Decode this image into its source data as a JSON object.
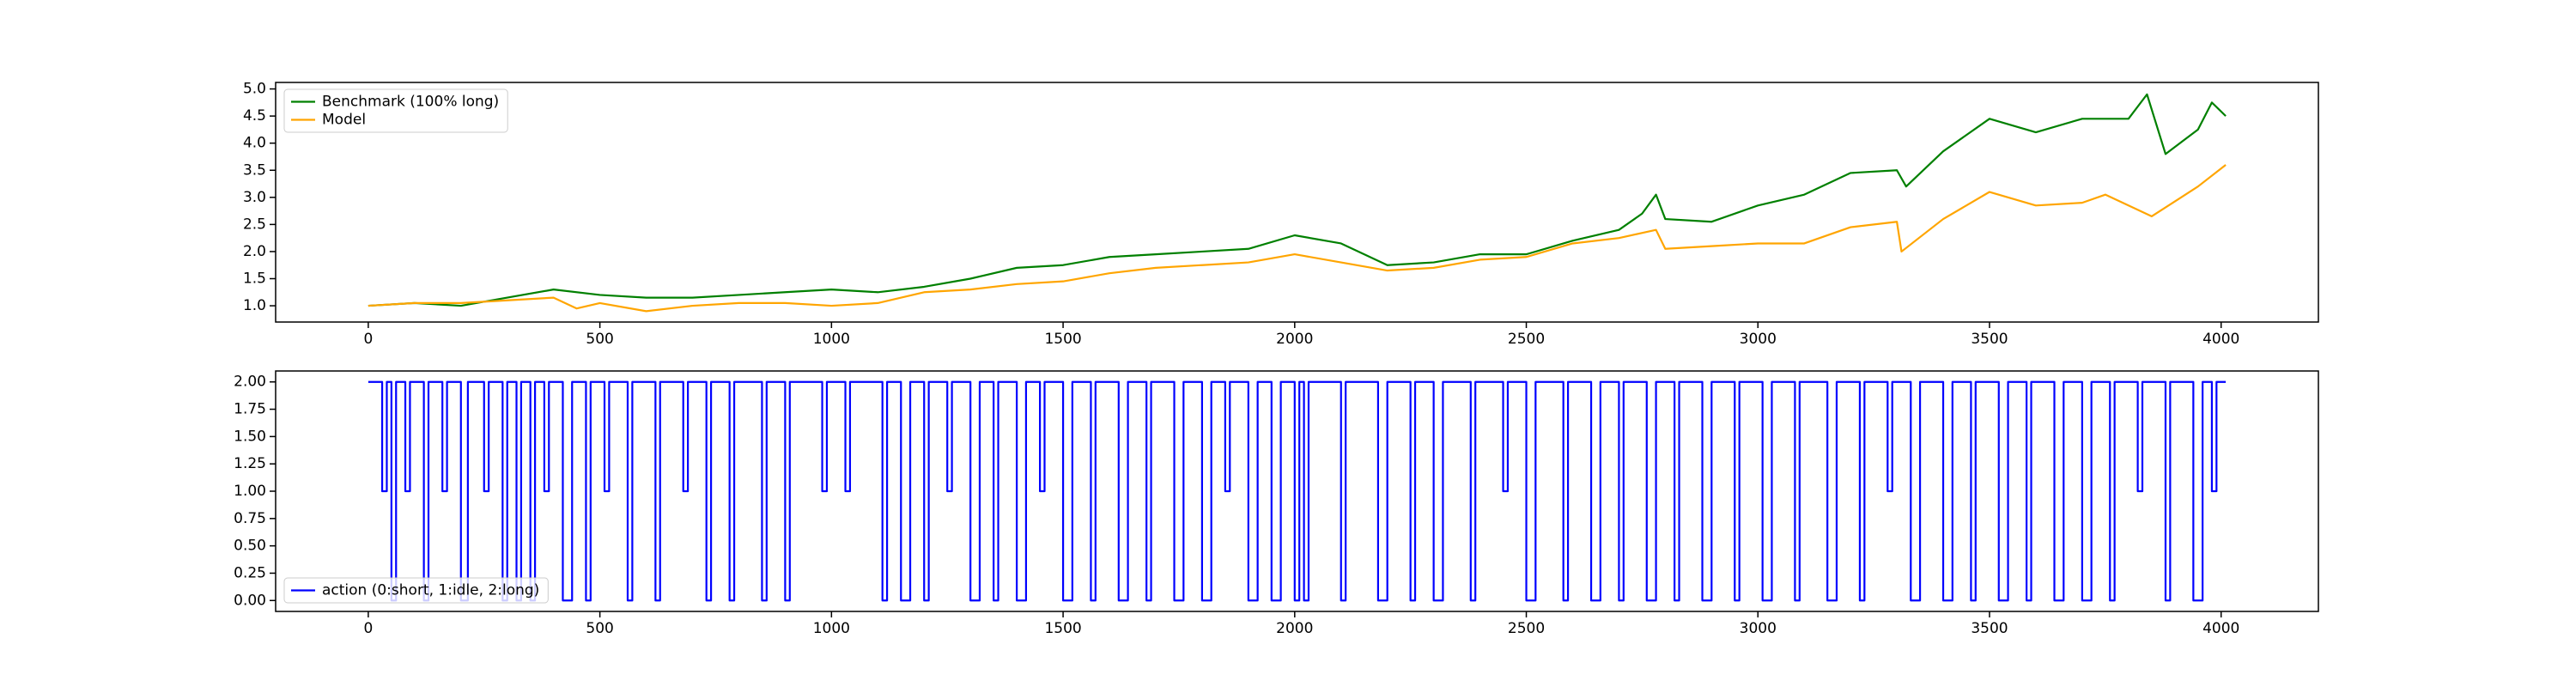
{
  "chart_data": [
    {
      "type": "line",
      "xlim": [
        -200,
        4210
      ],
      "ylim": [
        0.7,
        5.12
      ],
      "xticks": [
        0,
        500,
        1000,
        1500,
        2000,
        2500,
        3000,
        3500,
        4000
      ],
      "yticks": [
        {
          "value": 1,
          "label": "1.0"
        },
        {
          "value": 1.5,
          "label": "1.5"
        },
        {
          "value": 2,
          "label": "2.0"
        },
        {
          "value": 2.5,
          "label": "2.5"
        },
        {
          "value": 3,
          "label": "3.0"
        },
        {
          "value": 3.5,
          "label": "3.5"
        },
        {
          "value": 4,
          "label": "4.0"
        },
        {
          "value": 4.5,
          "label": "4.5"
        },
        {
          "value": 5,
          "label": "5.0"
        }
      ],
      "grid": false,
      "legend": "upper left",
      "series": [
        {
          "name": "Benchmark (100% long)",
          "color": "green",
          "x": [
            0,
            100,
            200,
            300,
            400,
            500,
            600,
            700,
            800,
            900,
            1000,
            1100,
            1200,
            1300,
            1400,
            1500,
            1600,
            1700,
            1800,
            1900,
            2000,
            2100,
            2200,
            2300,
            2400,
            2500,
            2600,
            2700,
            2750,
            2780,
            2800,
            2900,
            3000,
            3100,
            3200,
            3300,
            3320,
            3400,
            3500,
            3600,
            3700,
            3800,
            3840,
            3880,
            3950,
            3980,
            4010
          ],
          "values": [
            1.0,
            1.05,
            1.0,
            1.15,
            1.3,
            1.2,
            1.15,
            1.15,
            1.2,
            1.25,
            1.3,
            1.25,
            1.35,
            1.5,
            1.7,
            1.75,
            1.9,
            1.95,
            2.0,
            2.05,
            2.3,
            2.15,
            1.75,
            1.8,
            1.95,
            1.95,
            2.2,
            2.4,
            2.7,
            3.05,
            2.6,
            2.55,
            2.85,
            3.05,
            3.45,
            3.5,
            3.2,
            3.85,
            4.45,
            4.2,
            4.45,
            4.45,
            4.9,
            3.8,
            4.25,
            4.75,
            4.5
          ]
        },
        {
          "name": "Model",
          "color": "orange",
          "x": [
            0,
            100,
            200,
            300,
            400,
            450,
            500,
            600,
            700,
            800,
            900,
            1000,
            1100,
            1200,
            1300,
            1400,
            1500,
            1600,
            1700,
            1800,
            1900,
            2000,
            2100,
            2200,
            2300,
            2400,
            2500,
            2600,
            2700,
            2780,
            2800,
            2900,
            3000,
            3100,
            3200,
            3300,
            3310,
            3400,
            3500,
            3600,
            3700,
            3750,
            3850,
            3950,
            4010
          ],
          "values": [
            1.0,
            1.05,
            1.05,
            1.1,
            1.15,
            0.95,
            1.05,
            0.9,
            1.0,
            1.05,
            1.05,
            1.0,
            1.05,
            1.25,
            1.3,
            1.4,
            1.45,
            1.6,
            1.7,
            1.75,
            1.8,
            1.95,
            1.8,
            1.65,
            1.7,
            1.85,
            1.9,
            2.15,
            2.25,
            2.4,
            2.05,
            2.1,
            2.15,
            2.15,
            2.45,
            2.55,
            2.0,
            2.6,
            3.1,
            2.85,
            2.9,
            3.05,
            2.65,
            3.2,
            3.6
          ]
        }
      ]
    },
    {
      "type": "line",
      "xlim": [
        -200,
        4210
      ],
      "ylim": [
        -0.1,
        2.1
      ],
      "xticks": [
        0,
        500,
        1000,
        1500,
        2000,
        2500,
        3000,
        3500,
        4000
      ],
      "yticks": [
        {
          "value": 0,
          "label": "0.00"
        },
        {
          "value": 0.25,
          "label": "0.25"
        },
        {
          "value": 0.5,
          "label": "0.50"
        },
        {
          "value": 0.75,
          "label": "0.75"
        },
        {
          "value": 1,
          "label": "1.00"
        },
        {
          "value": 1.25,
          "label": "1.25"
        },
        {
          "value": 1.5,
          "label": "1.50"
        },
        {
          "value": 1.75,
          "label": "1.75"
        },
        {
          "value": 2,
          "label": "2.00"
        }
      ],
      "grid": false,
      "legend": "lower left",
      "series": [
        {
          "name": "action (0:short, 1:idle, 2:long)",
          "color": "blue",
          "drawstyle": "steps-post",
          "x": [
            0,
            30,
            40,
            50,
            60,
            80,
            90,
            120,
            130,
            160,
            170,
            200,
            215,
            250,
            260,
            290,
            300,
            320,
            330,
            350,
            360,
            380,
            390,
            420,
            440,
            470,
            480,
            510,
            520,
            560,
            570,
            620,
            630,
            680,
            690,
            730,
            740,
            780,
            790,
            850,
            860,
            900,
            910,
            980,
            990,
            1030,
            1040,
            1110,
            1120,
            1150,
            1170,
            1200,
            1210,
            1250,
            1260,
            1300,
            1320,
            1350,
            1360,
            1400,
            1420,
            1450,
            1460,
            1500,
            1520,
            1560,
            1570,
            1620,
            1640,
            1680,
            1690,
            1740,
            1760,
            1800,
            1820,
            1850,
            1860,
            1900,
            1920,
            1950,
            1970,
            2000,
            2010,
            2020,
            2030,
            2100,
            2110,
            2180,
            2200,
            2250,
            2260,
            2300,
            2320,
            2380,
            2390,
            2450,
            2460,
            2500,
            2520,
            2580,
            2590,
            2640,
            2660,
            2700,
            2710,
            2760,
            2780,
            2820,
            2830,
            2880,
            2900,
            2950,
            2960,
            3010,
            3030,
            3080,
            3090,
            3150,
            3170,
            3220,
            3230,
            3280,
            3290,
            3330,
            3350,
            3400,
            3420,
            3460,
            3470,
            3520,
            3540,
            3580,
            3590,
            3640,
            3660,
            3700,
            3720,
            3760,
            3770,
            3820,
            3830,
            3880,
            3890,
            3940,
            3960,
            3980,
            3990,
            4010
          ],
          "values": [
            2,
            1,
            2,
            0,
            2,
            1,
            2,
            0,
            2,
            1,
            2,
            0,
            2,
            1,
            2,
            0,
            2,
            0,
            2,
            0,
            2,
            1,
            2,
            0,
            2,
            0,
            2,
            1,
            2,
            0,
            2,
            0,
            2,
            1,
            2,
            0,
            2,
            0,
            2,
            0,
            2,
            0,
            2,
            1,
            2,
            1,
            2,
            0,
            2,
            0,
            2,
            0,
            2,
            1,
            2,
            0,
            2,
            0,
            2,
            0,
            2,
            1,
            2,
            0,
            2,
            0,
            2,
            0,
            2,
            0,
            2,
            0,
            2,
            0,
            2,
            1,
            2,
            0,
            2,
            0,
            2,
            0,
            2,
            0,
            2,
            0,
            2,
            0,
            2,
            0,
            2,
            0,
            2,
            0,
            2,
            1,
            2,
            0,
            2,
            0,
            2,
            0,
            2,
            0,
            2,
            0,
            2,
            0,
            2,
            0,
            2,
            0,
            2,
            0,
            2,
            0,
            2,
            0,
            2,
            0,
            2,
            1,
            2,
            0,
            2,
            0,
            2,
            0,
            2,
            0,
            2,
            0,
            2,
            0,
            2,
            0,
            2,
            0,
            2,
            1,
            2,
            0,
            2,
            0,
            2,
            1,
            2,
            2
          ]
        }
      ]
    }
  ]
}
